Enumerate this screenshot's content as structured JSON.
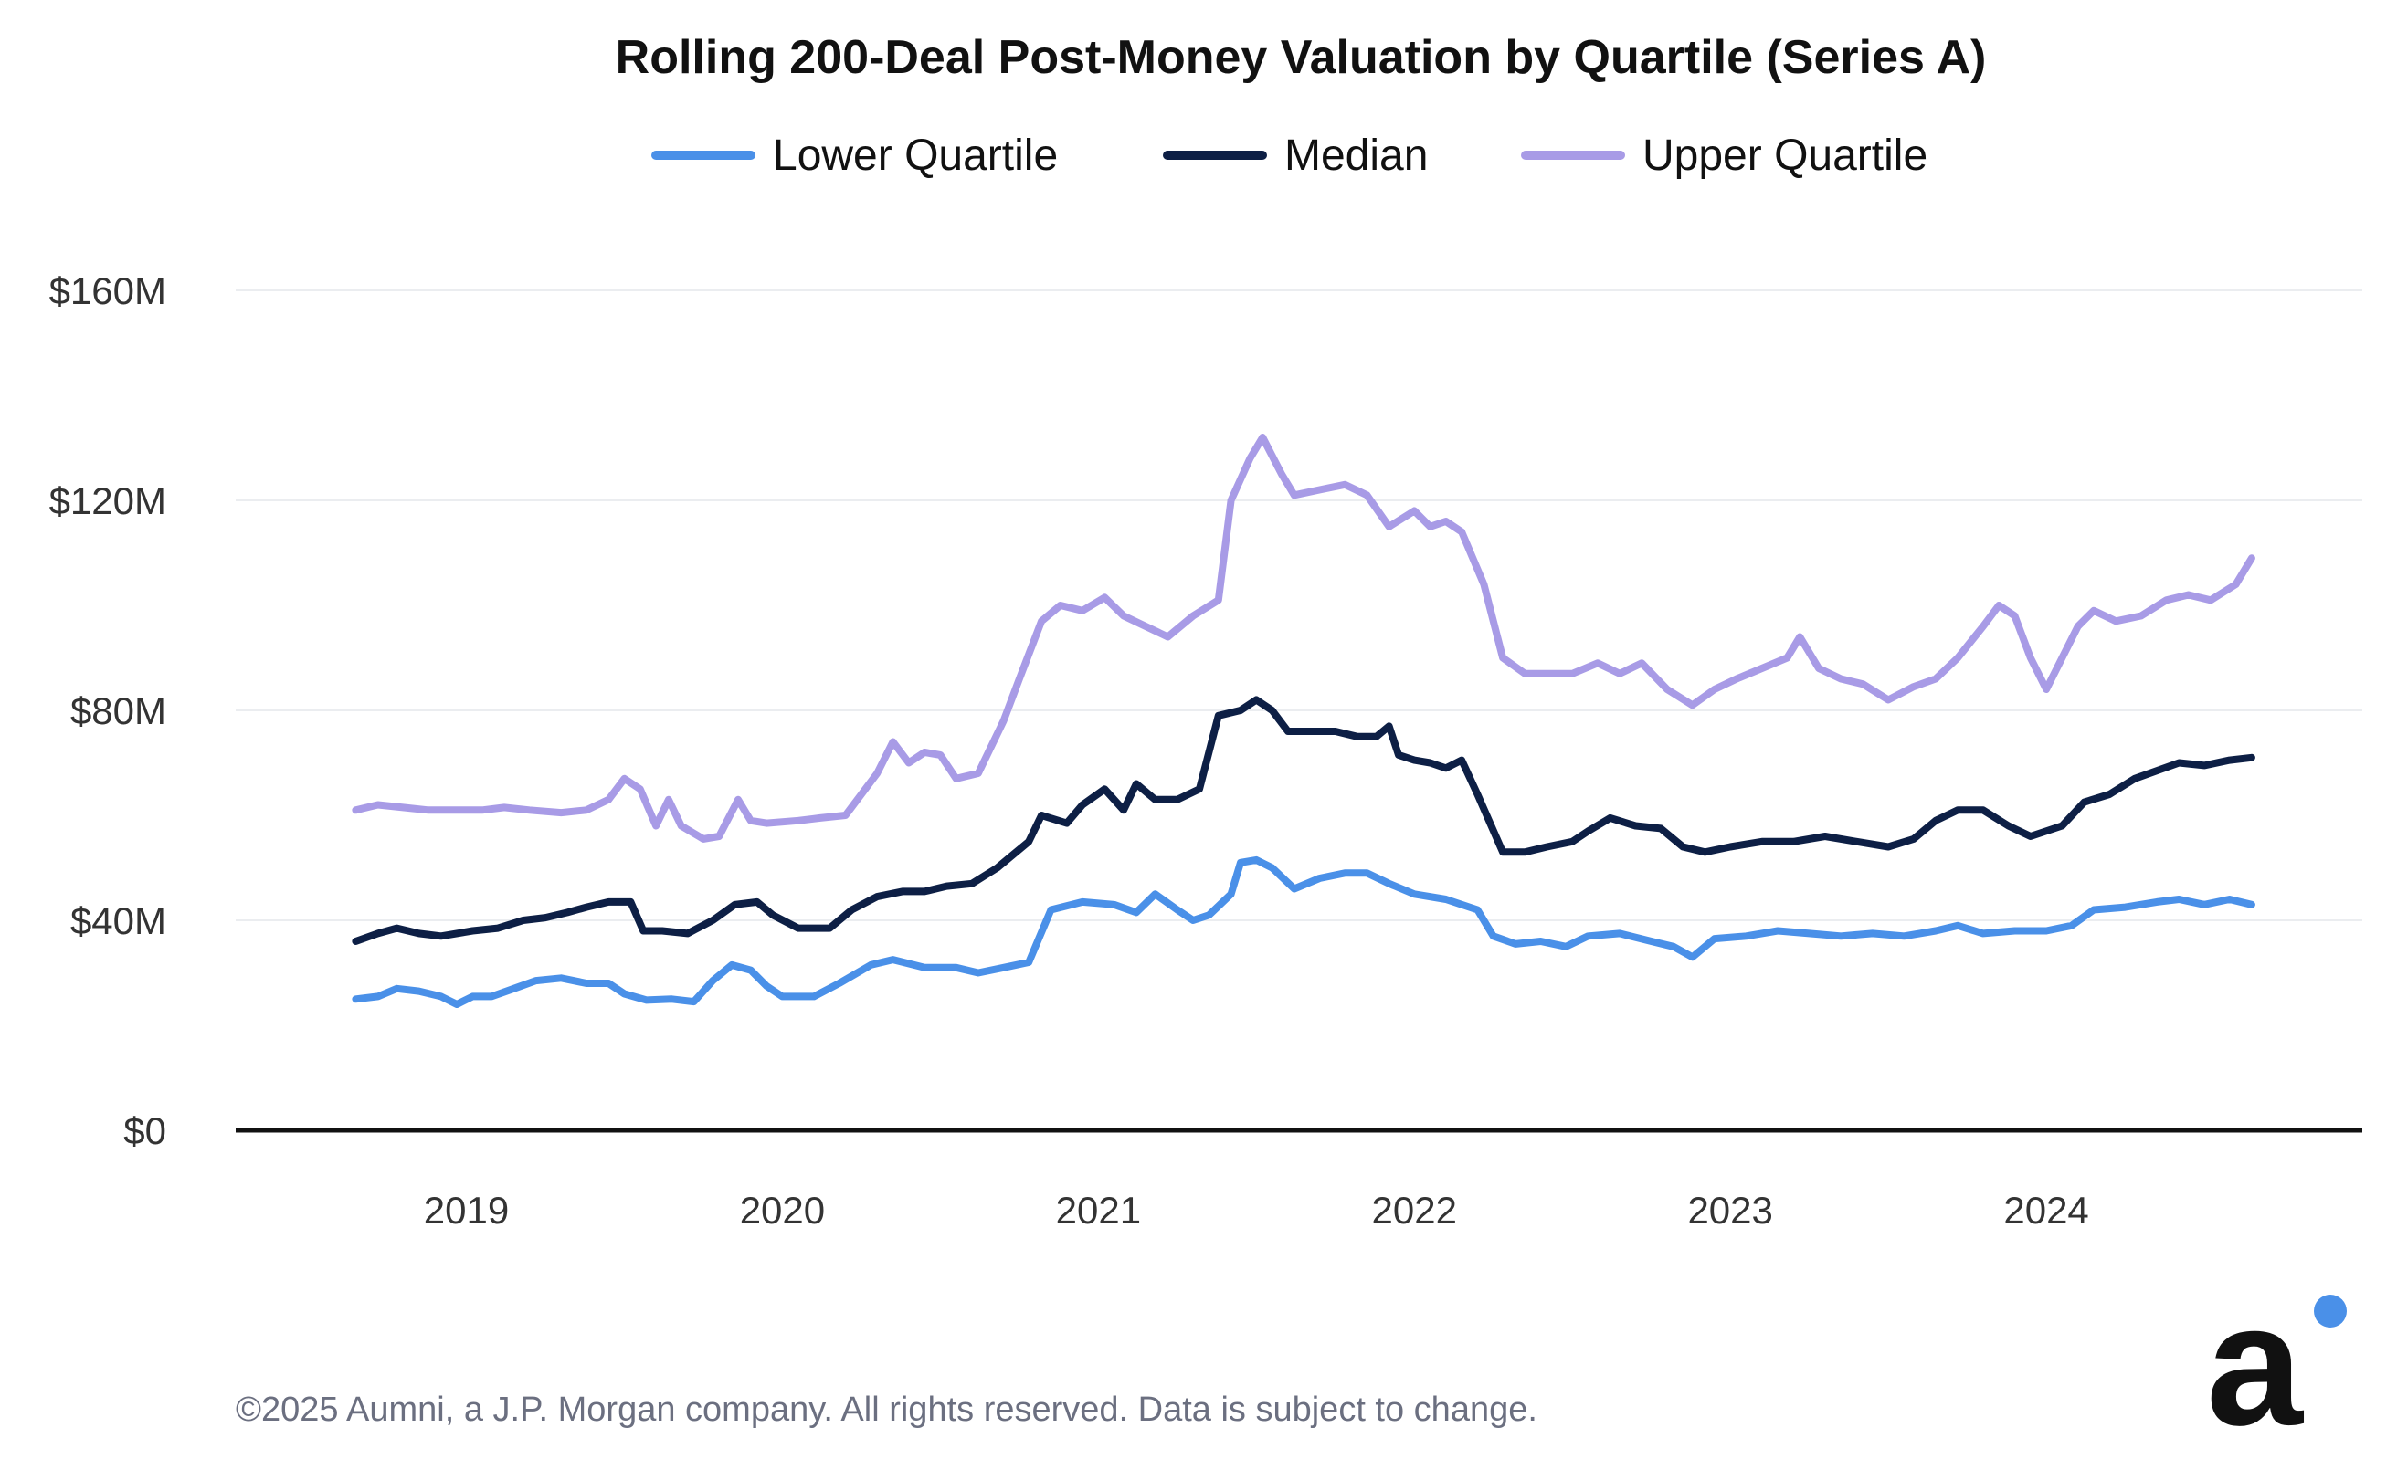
{
  "chart_data": {
    "type": "line",
    "title": "Rolling 200-Deal Post-Money Valuation by Quartile (Series A)",
    "xlabel": "",
    "ylabel": "",
    "x_range": [
      2018.65,
      2024.65
    ],
    "ylim": [
      0,
      160
    ],
    "y_ticks": [
      0,
      40,
      80,
      120,
      160
    ],
    "y_tick_labels": [
      "$0",
      "$40M",
      "$80M",
      "$120M",
      "$160M"
    ],
    "x_ticks": [
      2019,
      2020,
      2021,
      2022,
      2023,
      2024
    ],
    "x_tick_labels": [
      "2019",
      "2020",
      "2021",
      "2022",
      "2023",
      "2024"
    ],
    "grid": true,
    "legend_position": "top-center",
    "series": [
      {
        "name": "Lower Quartile",
        "color": "#4a90e8",
        "points": [
          [
            2018.65,
            25
          ],
          [
            2018.72,
            25.5
          ],
          [
            2018.78,
            27
          ],
          [
            2018.85,
            26.5
          ],
          [
            2018.92,
            25.5
          ],
          [
            2018.97,
            24
          ],
          [
            2019.02,
            25.5
          ],
          [
            2019.08,
            25.5
          ],
          [
            2019.15,
            27
          ],
          [
            2019.22,
            28.5
          ],
          [
            2019.3,
            29
          ],
          [
            2019.38,
            28
          ],
          [
            2019.45,
            28
          ],
          [
            2019.5,
            26
          ],
          [
            2019.57,
            24.8
          ],
          [
            2019.65,
            25
          ],
          [
            2019.72,
            24.5
          ],
          [
            2019.78,
            28.5
          ],
          [
            2019.84,
            31.5
          ],
          [
            2019.9,
            30.5
          ],
          [
            2019.95,
            27.5
          ],
          [
            2020.0,
            25.5
          ],
          [
            2020.1,
            25.5
          ],
          [
            2020.18,
            28
          ],
          [
            2020.28,
            31.5
          ],
          [
            2020.35,
            32.5
          ],
          [
            2020.45,
            31
          ],
          [
            2020.55,
            31
          ],
          [
            2020.62,
            30
          ],
          [
            2020.7,
            31
          ],
          [
            2020.78,
            32
          ],
          [
            2020.85,
            42
          ],
          [
            2020.95,
            43.5
          ],
          [
            2021.05,
            43
          ],
          [
            2021.12,
            41.5
          ],
          [
            2021.18,
            45
          ],
          [
            2021.25,
            42
          ],
          [
            2021.3,
            40
          ],
          [
            2021.35,
            41
          ],
          [
            2021.42,
            45
          ],
          [
            2021.45,
            51
          ],
          [
            2021.5,
            51.5
          ],
          [
            2021.55,
            50
          ],
          [
            2021.62,
            46
          ],
          [
            2021.7,
            48
          ],
          [
            2021.78,
            49
          ],
          [
            2021.85,
            49
          ],
          [
            2021.92,
            47
          ],
          [
            2022.0,
            45
          ],
          [
            2022.1,
            44
          ],
          [
            2022.2,
            42
          ],
          [
            2022.25,
            37
          ],
          [
            2022.32,
            35.5
          ],
          [
            2022.4,
            36
          ],
          [
            2022.48,
            35
          ],
          [
            2022.55,
            37
          ],
          [
            2022.65,
            37.5
          ],
          [
            2022.75,
            36
          ],
          [
            2022.82,
            35
          ],
          [
            2022.88,
            33
          ],
          [
            2022.95,
            36.5
          ],
          [
            2023.05,
            37
          ],
          [
            2023.15,
            38
          ],
          [
            2023.25,
            37.5
          ],
          [
            2023.35,
            37
          ],
          [
            2023.45,
            37.5
          ],
          [
            2023.55,
            37
          ],
          [
            2023.65,
            38
          ],
          [
            2023.72,
            39
          ],
          [
            2023.8,
            37.5
          ],
          [
            2023.9,
            38
          ],
          [
            2024.0,
            38
          ],
          [
            2024.08,
            39
          ],
          [
            2024.15,
            42
          ],
          [
            2024.25,
            42.5
          ],
          [
            2024.35,
            43.5
          ],
          [
            2024.42,
            44
          ],
          [
            2024.5,
            43
          ],
          [
            2024.58,
            44
          ],
          [
            2024.65,
            43
          ]
        ]
      },
      {
        "name": "Median",
        "color": "#0d1f45",
        "points": [
          [
            2018.65,
            36
          ],
          [
            2018.72,
            37.5
          ],
          [
            2018.78,
            38.5
          ],
          [
            2018.85,
            37.5
          ],
          [
            2018.92,
            37
          ],
          [
            2018.97,
            37.5
          ],
          [
            2019.02,
            38
          ],
          [
            2019.1,
            38.5
          ],
          [
            2019.18,
            40
          ],
          [
            2019.25,
            40.5
          ],
          [
            2019.32,
            41.5
          ],
          [
            2019.38,
            42.5
          ],
          [
            2019.45,
            43.5
          ],
          [
            2019.52,
            43.5
          ],
          [
            2019.56,
            38
          ],
          [
            2019.62,
            38
          ],
          [
            2019.7,
            37.5
          ],
          [
            2019.78,
            40
          ],
          [
            2019.85,
            43
          ],
          [
            2019.92,
            43.5
          ],
          [
            2019.97,
            41
          ],
          [
            2020.05,
            38.5
          ],
          [
            2020.15,
            38.5
          ],
          [
            2020.22,
            42
          ],
          [
            2020.3,
            44.5
          ],
          [
            2020.38,
            45.5
          ],
          [
            2020.45,
            45.5
          ],
          [
            2020.52,
            46.5
          ],
          [
            2020.6,
            47
          ],
          [
            2020.68,
            50
          ],
          [
            2020.72,
            52
          ],
          [
            2020.78,
            55
          ],
          [
            2020.82,
            60
          ],
          [
            2020.9,
            58.5
          ],
          [
            2020.95,
            62
          ],
          [
            2021.02,
            65
          ],
          [
            2021.08,
            61
          ],
          [
            2021.12,
            66
          ],
          [
            2021.18,
            63
          ],
          [
            2021.25,
            63
          ],
          [
            2021.32,
            65
          ],
          [
            2021.38,
            79
          ],
          [
            2021.45,
            80
          ],
          [
            2021.5,
            82
          ],
          [
            2021.55,
            80
          ],
          [
            2021.6,
            76
          ],
          [
            2021.68,
            76
          ],
          [
            2021.75,
            76
          ],
          [
            2021.82,
            75
          ],
          [
            2021.88,
            75
          ],
          [
            2021.92,
            77
          ],
          [
            2021.95,
            71.5
          ],
          [
            2022.0,
            70.5
          ],
          [
            2022.05,
            70
          ],
          [
            2022.1,
            69
          ],
          [
            2022.15,
            70.5
          ],
          [
            2022.2,
            64
          ],
          [
            2022.28,
            53
          ],
          [
            2022.35,
            53
          ],
          [
            2022.42,
            54
          ],
          [
            2022.5,
            55
          ],
          [
            2022.55,
            57
          ],
          [
            2022.62,
            59.5
          ],
          [
            2022.7,
            58
          ],
          [
            2022.78,
            57.5
          ],
          [
            2022.85,
            54
          ],
          [
            2022.92,
            53
          ],
          [
            2023.0,
            54
          ],
          [
            2023.1,
            55
          ],
          [
            2023.2,
            55
          ],
          [
            2023.3,
            56
          ],
          [
            2023.4,
            55
          ],
          [
            2023.5,
            54
          ],
          [
            2023.58,
            55.5
          ],
          [
            2023.65,
            59
          ],
          [
            2023.72,
            61
          ],
          [
            2023.8,
            61
          ],
          [
            2023.88,
            58
          ],
          [
            2023.95,
            56
          ],
          [
            2024.05,
            58
          ],
          [
            2024.12,
            62.5
          ],
          [
            2024.2,
            64
          ],
          [
            2024.28,
            67
          ],
          [
            2024.35,
            68.5
          ],
          [
            2024.42,
            70
          ],
          [
            2024.5,
            69.5
          ],
          [
            2024.58,
            70.5
          ],
          [
            2024.65,
            71
          ]
        ]
      },
      {
        "name": "Upper Quartile",
        "color": "#a89be6",
        "points": [
          [
            2018.65,
            61
          ],
          [
            2018.72,
            62
          ],
          [
            2018.8,
            61.5
          ],
          [
            2018.88,
            61
          ],
          [
            2018.95,
            61
          ],
          [
            2019.05,
            61
          ],
          [
            2019.12,
            61.5
          ],
          [
            2019.2,
            61
          ],
          [
            2019.3,
            60.5
          ],
          [
            2019.38,
            61
          ],
          [
            2019.45,
            63
          ],
          [
            2019.5,
            67
          ],
          [
            2019.55,
            65
          ],
          [
            2019.6,
            58
          ],
          [
            2019.64,
            63
          ],
          [
            2019.68,
            58
          ],
          [
            2019.75,
            55.5
          ],
          [
            2019.8,
            56
          ],
          [
            2019.86,
            63
          ],
          [
            2019.9,
            59
          ],
          [
            2019.95,
            58.5
          ],
          [
            2020.05,
            59
          ],
          [
            2020.12,
            59.5
          ],
          [
            2020.2,
            60
          ],
          [
            2020.25,
            64
          ],
          [
            2020.3,
            68
          ],
          [
            2020.35,
            74
          ],
          [
            2020.4,
            70
          ],
          [
            2020.45,
            72
          ],
          [
            2020.5,
            71.5
          ],
          [
            2020.55,
            67
          ],
          [
            2020.62,
            68
          ],
          [
            2020.7,
            78
          ],
          [
            2020.75,
            86
          ],
          [
            2020.82,
            97
          ],
          [
            2020.88,
            100
          ],
          [
            2020.95,
            99
          ],
          [
            2021.02,
            101.5
          ],
          [
            2021.08,
            98
          ],
          [
            2021.15,
            96
          ],
          [
            2021.22,
            94
          ],
          [
            2021.3,
            98
          ],
          [
            2021.38,
            101
          ],
          [
            2021.42,
            120
          ],
          [
            2021.48,
            128
          ],
          [
            2021.52,
            132
          ],
          [
            2021.58,
            125
          ],
          [
            2021.62,
            121
          ],
          [
            2021.7,
            122
          ],
          [
            2021.78,
            123
          ],
          [
            2021.85,
            121
          ],
          [
            2021.92,
            115
          ],
          [
            2022.0,
            118
          ],
          [
            2022.05,
            115
          ],
          [
            2022.1,
            116
          ],
          [
            2022.15,
            114
          ],
          [
            2022.22,
            104
          ],
          [
            2022.28,
            90
          ],
          [
            2022.35,
            87
          ],
          [
            2022.42,
            87
          ],
          [
            2022.5,
            87
          ],
          [
            2022.58,
            89
          ],
          [
            2022.65,
            87
          ],
          [
            2022.72,
            89
          ],
          [
            2022.8,
            84
          ],
          [
            2022.88,
            81
          ],
          [
            2022.95,
            84
          ],
          [
            2023.02,
            86
          ],
          [
            2023.1,
            88
          ],
          [
            2023.18,
            90
          ],
          [
            2023.22,
            94
          ],
          [
            2023.28,
            88
          ],
          [
            2023.35,
            86
          ],
          [
            2023.42,
            85
          ],
          [
            2023.5,
            82
          ],
          [
            2023.58,
            84.5
          ],
          [
            2023.65,
            86
          ],
          [
            2023.72,
            90
          ],
          [
            2023.8,
            96
          ],
          [
            2023.85,
            100
          ],
          [
            2023.9,
            98
          ],
          [
            2023.95,
            90
          ],
          [
            2024.0,
            84
          ],
          [
            2024.05,
            90
          ],
          [
            2024.1,
            96
          ],
          [
            2024.15,
            99
          ],
          [
            2024.22,
            97
          ],
          [
            2024.3,
            98
          ],
          [
            2024.38,
            101
          ],
          [
            2024.45,
            102
          ],
          [
            2024.52,
            101
          ],
          [
            2024.6,
            104
          ],
          [
            2024.65,
            109
          ]
        ]
      }
    ]
  },
  "footer": {
    "copyright": "©2025 Aumni, a J.P. Morgan company. All rights reserved. Data is subject to change."
  },
  "logo": {
    "letter": "a",
    "accent_color": "#4a90e8"
  },
  "colors": {
    "axis": "#111111",
    "grid": "#ebedf0",
    "text": "#111111"
  }
}
